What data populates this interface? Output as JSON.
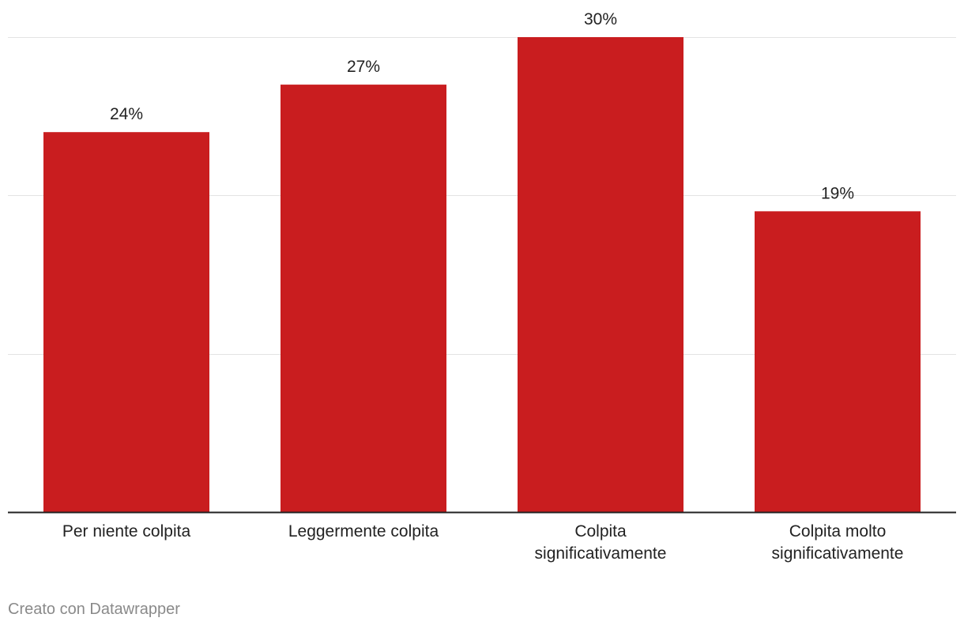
{
  "chart_data": {
    "type": "bar",
    "categories": [
      [
        "Per niente colpita"
      ],
      [
        "Leggermente colpita"
      ],
      [
        "Colpita",
        "significativamente"
      ],
      [
        "Colpita molto",
        "significativamente"
      ]
    ],
    "values": [
      24,
      27,
      30,
      19
    ],
    "value_labels": [
      "24%",
      "27%",
      "30%",
      "19%"
    ],
    "ylim": [
      0,
      30
    ],
    "gridlines": [
      10,
      20,
      30
    ],
    "grid": true,
    "bar_color": "#c91d1f",
    "title": "",
    "xlabel": "",
    "ylabel": ""
  },
  "footer": {
    "credit": "Creato con Datawrapper"
  }
}
